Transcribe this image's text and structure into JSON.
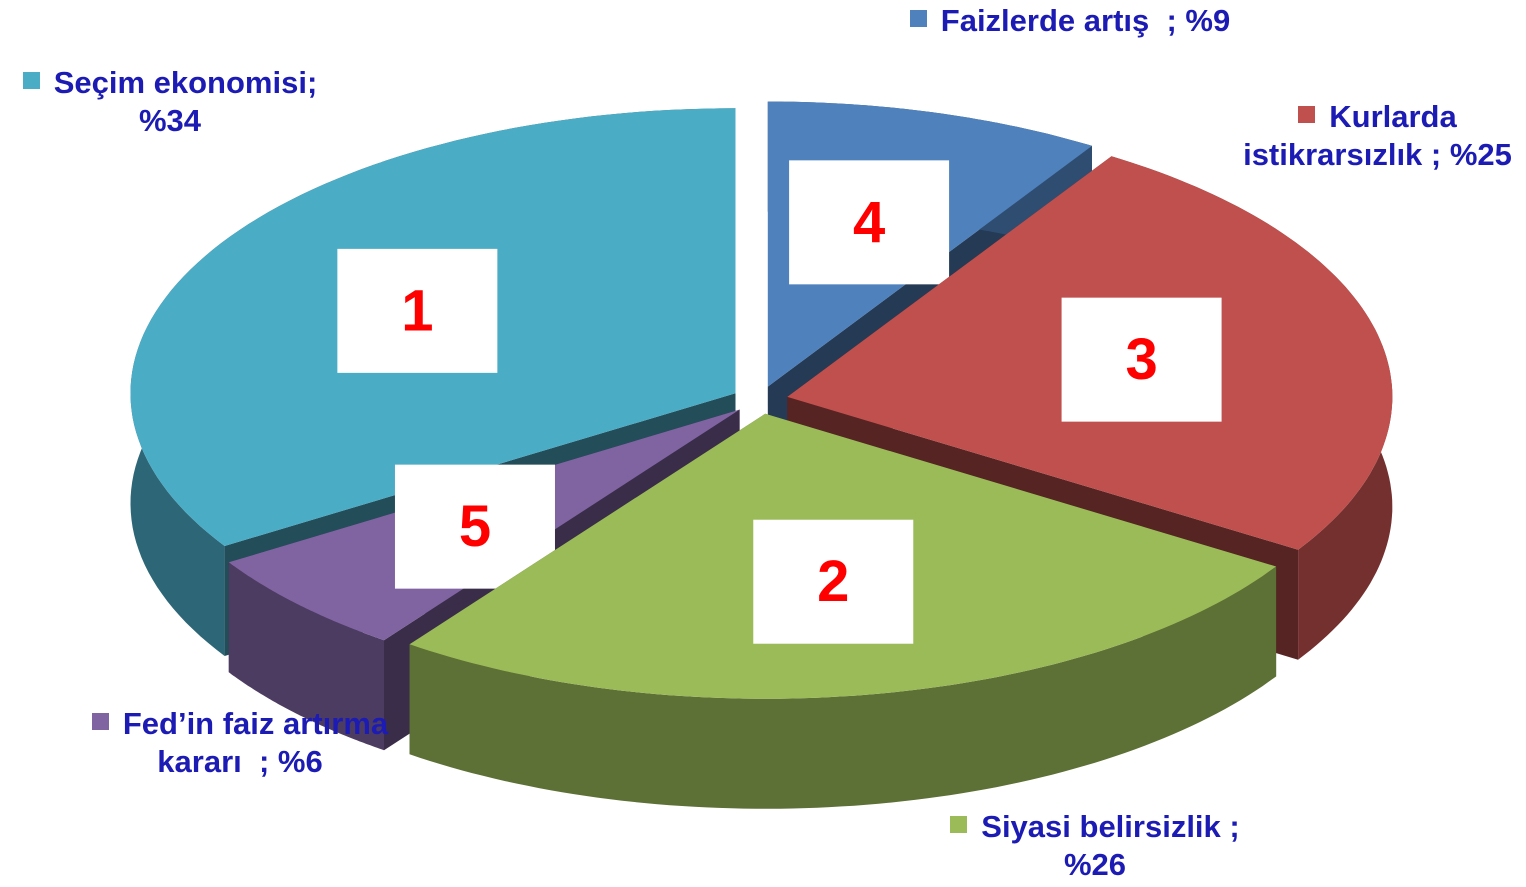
{
  "chart_data": {
    "type": "pie3d",
    "categories": [
      "Seçim ekonomisi",
      "Faizlerde artış",
      "Kurlarda istikrarsızlık",
      "Siyasi belirsizlik",
      "Fed’in faiz artırma kararı"
    ],
    "values": [
      34,
      9,
      25,
      26,
      6
    ],
    "value_labels": [
      "; %34",
      "  ; %9",
      " ; %25",
      " ; %26",
      "  ; %6"
    ],
    "ranks": [
      "1",
      "4",
      "3",
      "2",
      "5"
    ],
    "colors": [
      "#4bacc6",
      "#4f81bd",
      "#c0504d",
      "#9bbb59",
      "#8064a2"
    ]
  }
}
